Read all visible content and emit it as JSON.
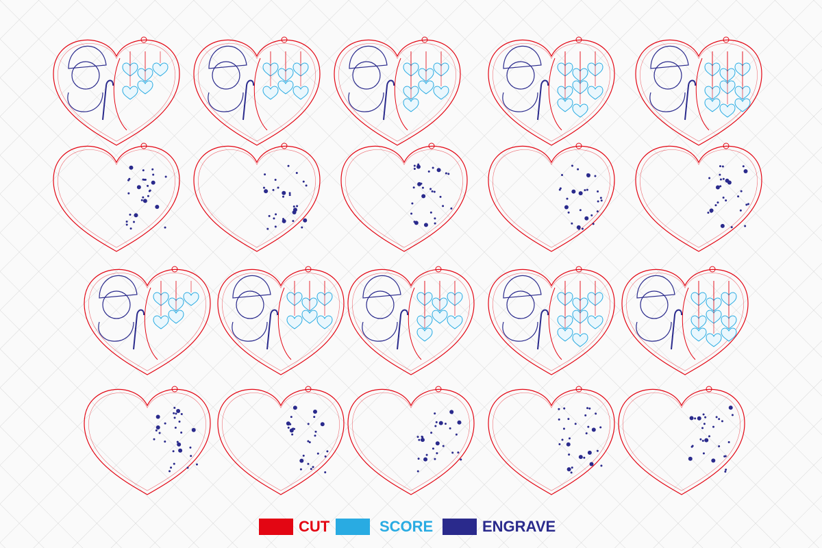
{
  "legend": [
    {
      "label": "CUT",
      "color": "#e30613"
    },
    {
      "label": "SCORE",
      "color": "#29abe2"
    },
    {
      "label": "ENGRAVE",
      "color": "#2a2a8c"
    }
  ]
}
